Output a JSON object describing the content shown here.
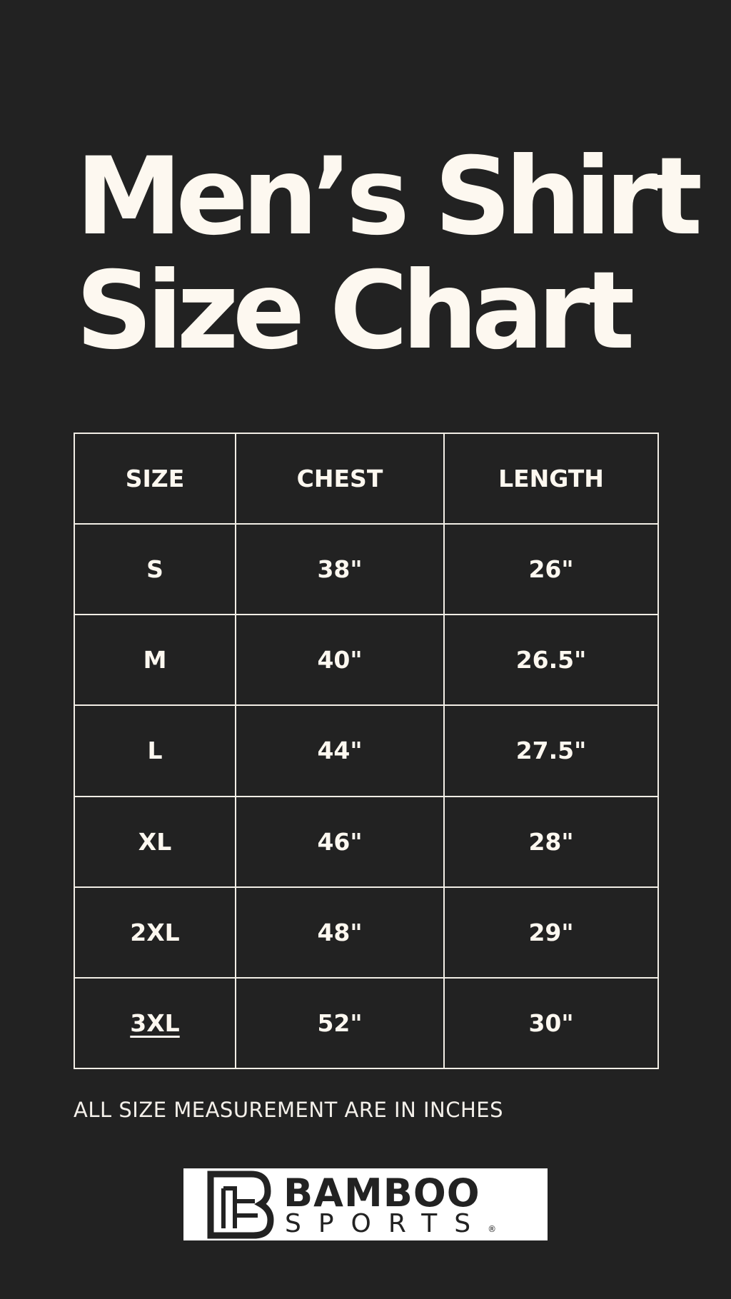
{
  "title": {
    "line1": "Men’s Shirt",
    "line2": "Size Chart"
  },
  "table": {
    "headers": [
      "SIZE",
      "CHEST",
      "LENGTH"
    ],
    "rows": [
      [
        "S",
        "38\"",
        "26\""
      ],
      [
        "M",
        "40\"",
        "26.5\""
      ],
      [
        "L",
        "44\"",
        "27.5\""
      ],
      [
        "XL",
        "46\"",
        "28\""
      ],
      [
        "2XL",
        "48\"",
        "29\""
      ],
      [
        "3XL",
        "52\"",
        "30\""
      ]
    ]
  },
  "note": "ALL SIZE MEASUREMENT ARE IN INCHES",
  "logo": {
    "line1": "BAMBOO",
    "line2": "SPORTS",
    "mark": "®",
    "icon": "bamboo-b-monogram-icon"
  },
  "colors": {
    "background": "#222222",
    "text": "#fdf8f0",
    "logo_bg": "#ffffff"
  }
}
